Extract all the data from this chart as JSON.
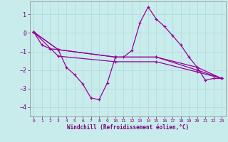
{
  "xlabel": "Windchill (Refroidissement éolien,°C)",
  "background_color": "#c8ecec",
  "grid_color": "#b0d8d8",
  "line_color": "#990099",
  "ylim": [
    -4.5,
    1.7
  ],
  "xlim": [
    -0.5,
    23.5
  ],
  "yticks": [
    -4,
    -3,
    -2,
    -1,
    0,
    1
  ],
  "xticks": [
    0,
    1,
    2,
    3,
    4,
    5,
    6,
    7,
    8,
    9,
    10,
    11,
    12,
    13,
    14,
    15,
    16,
    17,
    18,
    19,
    20,
    21,
    22,
    23
  ],
  "series0": [
    0.05,
    -0.65,
    -0.85,
    -0.9,
    -1.85,
    -2.25,
    -2.75,
    -3.5,
    -3.6,
    -2.7,
    -1.3,
    -1.3,
    -0.95,
    0.55,
    1.4,
    0.75,
    0.35,
    -0.15,
    -0.65,
    -1.3,
    -1.85,
    -2.55,
    -2.45,
    -2.45
  ],
  "series1_x": [
    0,
    3,
    10,
    15,
    20,
    23
  ],
  "series1_y": [
    0.05,
    -0.9,
    -1.3,
    -1.3,
    -1.85,
    -2.45
  ],
  "series2_x": [
    0,
    3,
    10,
    15,
    20,
    23
  ],
  "series2_y": [
    0.05,
    -0.9,
    -1.3,
    -1.3,
    -2.0,
    -2.45
  ],
  "series3_x": [
    0,
    3,
    10,
    15,
    20,
    23
  ],
  "series3_y": [
    0.05,
    -1.25,
    -1.55,
    -1.55,
    -2.1,
    -2.45
  ]
}
